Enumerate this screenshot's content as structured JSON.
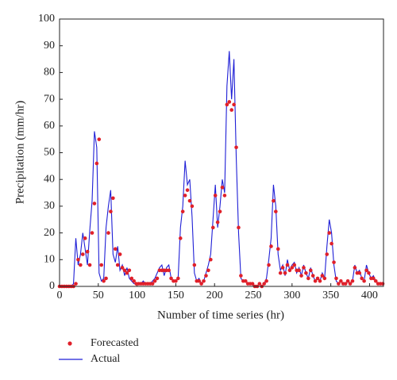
{
  "chart_data": {
    "type": "line",
    "x_label": "Number of time series (hr)",
    "y_label": "Precipitation (mm/hr)",
    "xlim": [
      0,
      418
    ],
    "xticks": [
      0,
      50,
      100,
      150,
      200,
      250,
      300,
      350,
      400
    ],
    "ylim": [
      0,
      100
    ],
    "yticks": [
      0,
      10,
      20,
      30,
      40,
      50,
      60,
      70,
      80,
      90,
      100
    ],
    "x": [
      0,
      3,
      6,
      9,
      12,
      15,
      18,
      21,
      24,
      27,
      30,
      33,
      36,
      39,
      42,
      45,
      48,
      51,
      54,
      57,
      60,
      63,
      66,
      69,
      72,
      75,
      78,
      81,
      84,
      87,
      90,
      93,
      96,
      99,
      102,
      105,
      108,
      111,
      114,
      117,
      120,
      123,
      126,
      129,
      132,
      135,
      138,
      141,
      144,
      147,
      150,
      153,
      156,
      159,
      162,
      165,
      168,
      171,
      174,
      177,
      180,
      183,
      186,
      189,
      192,
      195,
      198,
      201,
      204,
      207,
      210,
      213,
      216,
      219,
      222,
      225,
      228,
      231,
      234,
      237,
      240,
      243,
      246,
      249,
      252,
      255,
      258,
      261,
      264,
      267,
      270,
      273,
      276,
      279,
      282,
      285,
      288,
      291,
      294,
      297,
      300,
      303,
      306,
      309,
      312,
      315,
      318,
      321,
      324,
      327,
      330,
      333,
      336,
      339,
      342,
      345,
      348,
      351,
      354,
      357,
      360,
      363,
      366,
      369,
      372,
      375,
      378,
      381,
      384,
      387,
      390,
      393,
      396,
      399,
      402,
      405,
      408,
      411,
      414,
      417
    ],
    "series": [
      {
        "name": "Forecasted",
        "color": "#e0202a",
        "mode": "markers",
        "values": [
          0,
          0,
          0,
          0,
          0,
          0,
          0,
          1,
          10,
          8,
          12,
          18,
          13,
          8,
          20,
          31,
          46,
          55,
          8,
          2,
          3,
          20,
          28,
          33,
          14,
          8,
          12,
          7,
          6,
          5,
          6,
          3,
          2,
          1,
          1,
          1,
          1,
          1,
          1,
          1,
          1,
          2,
          3,
          6,
          6,
          6,
          6,
          6,
          3,
          2,
          2,
          3,
          18,
          28,
          34,
          36,
          32,
          30,
          8,
          2,
          2,
          1,
          2,
          4,
          6,
          10,
          22,
          34,
          24,
          28,
          37,
          34,
          68,
          69,
          66,
          68,
          52,
          22,
          4,
          2,
          2,
          1,
          1,
          1,
          0,
          0,
          1,
          0,
          1,
          2,
          8,
          15,
          32,
          28,
          14,
          5,
          7,
          5,
          8,
          6,
          7,
          8,
          6,
          6,
          4,
          7,
          5,
          3,
          6,
          4,
          2,
          3,
          2,
          4,
          3,
          12,
          20,
          16,
          9,
          3,
          1,
          2,
          1,
          1,
          2,
          1,
          2,
          7,
          5,
          5,
          3,
          2,
          6,
          5,
          3,
          3,
          2,
          1,
          1,
          1
        ]
      },
      {
        "name": "Actual",
        "color": "#1f1fd6",
        "mode": "lines",
        "values": [
          0,
          0,
          0,
          0,
          0,
          0,
          1,
          18,
          8,
          12,
          20,
          14,
          8,
          21,
          32,
          58,
          52,
          5,
          2,
          3,
          22,
          30,
          36,
          12,
          9,
          15,
          6,
          8,
          4,
          7,
          3,
          2,
          1,
          1,
          1,
          1,
          2,
          1,
          1,
          1,
          2,
          3,
          5,
          7,
          8,
          4,
          7,
          8,
          3,
          2,
          2,
          3,
          22,
          30,
          47,
          38,
          40,
          26,
          5,
          2,
          3,
          1,
          2,
          5,
          8,
          12,
          25,
          38,
          22,
          30,
          40,
          35,
          75,
          88,
          70,
          85,
          48,
          20,
          3,
          2,
          2,
          1,
          1,
          1,
          0,
          0,
          1,
          0,
          1,
          3,
          10,
          18,
          38,
          30,
          12,
          6,
          8,
          4,
          10,
          6,
          8,
          9,
          5,
          7,
          4,
          8,
          5,
          3,
          7,
          4,
          2,
          3,
          2,
          5,
          3,
          15,
          25,
          20,
          8,
          2,
          1,
          2,
          1,
          1,
          2,
          1,
          2,
          8,
          5,
          6,
          3,
          2,
          8,
          5,
          3,
          4,
          2,
          1,
          1,
          1
        ]
      }
    ]
  }
}
